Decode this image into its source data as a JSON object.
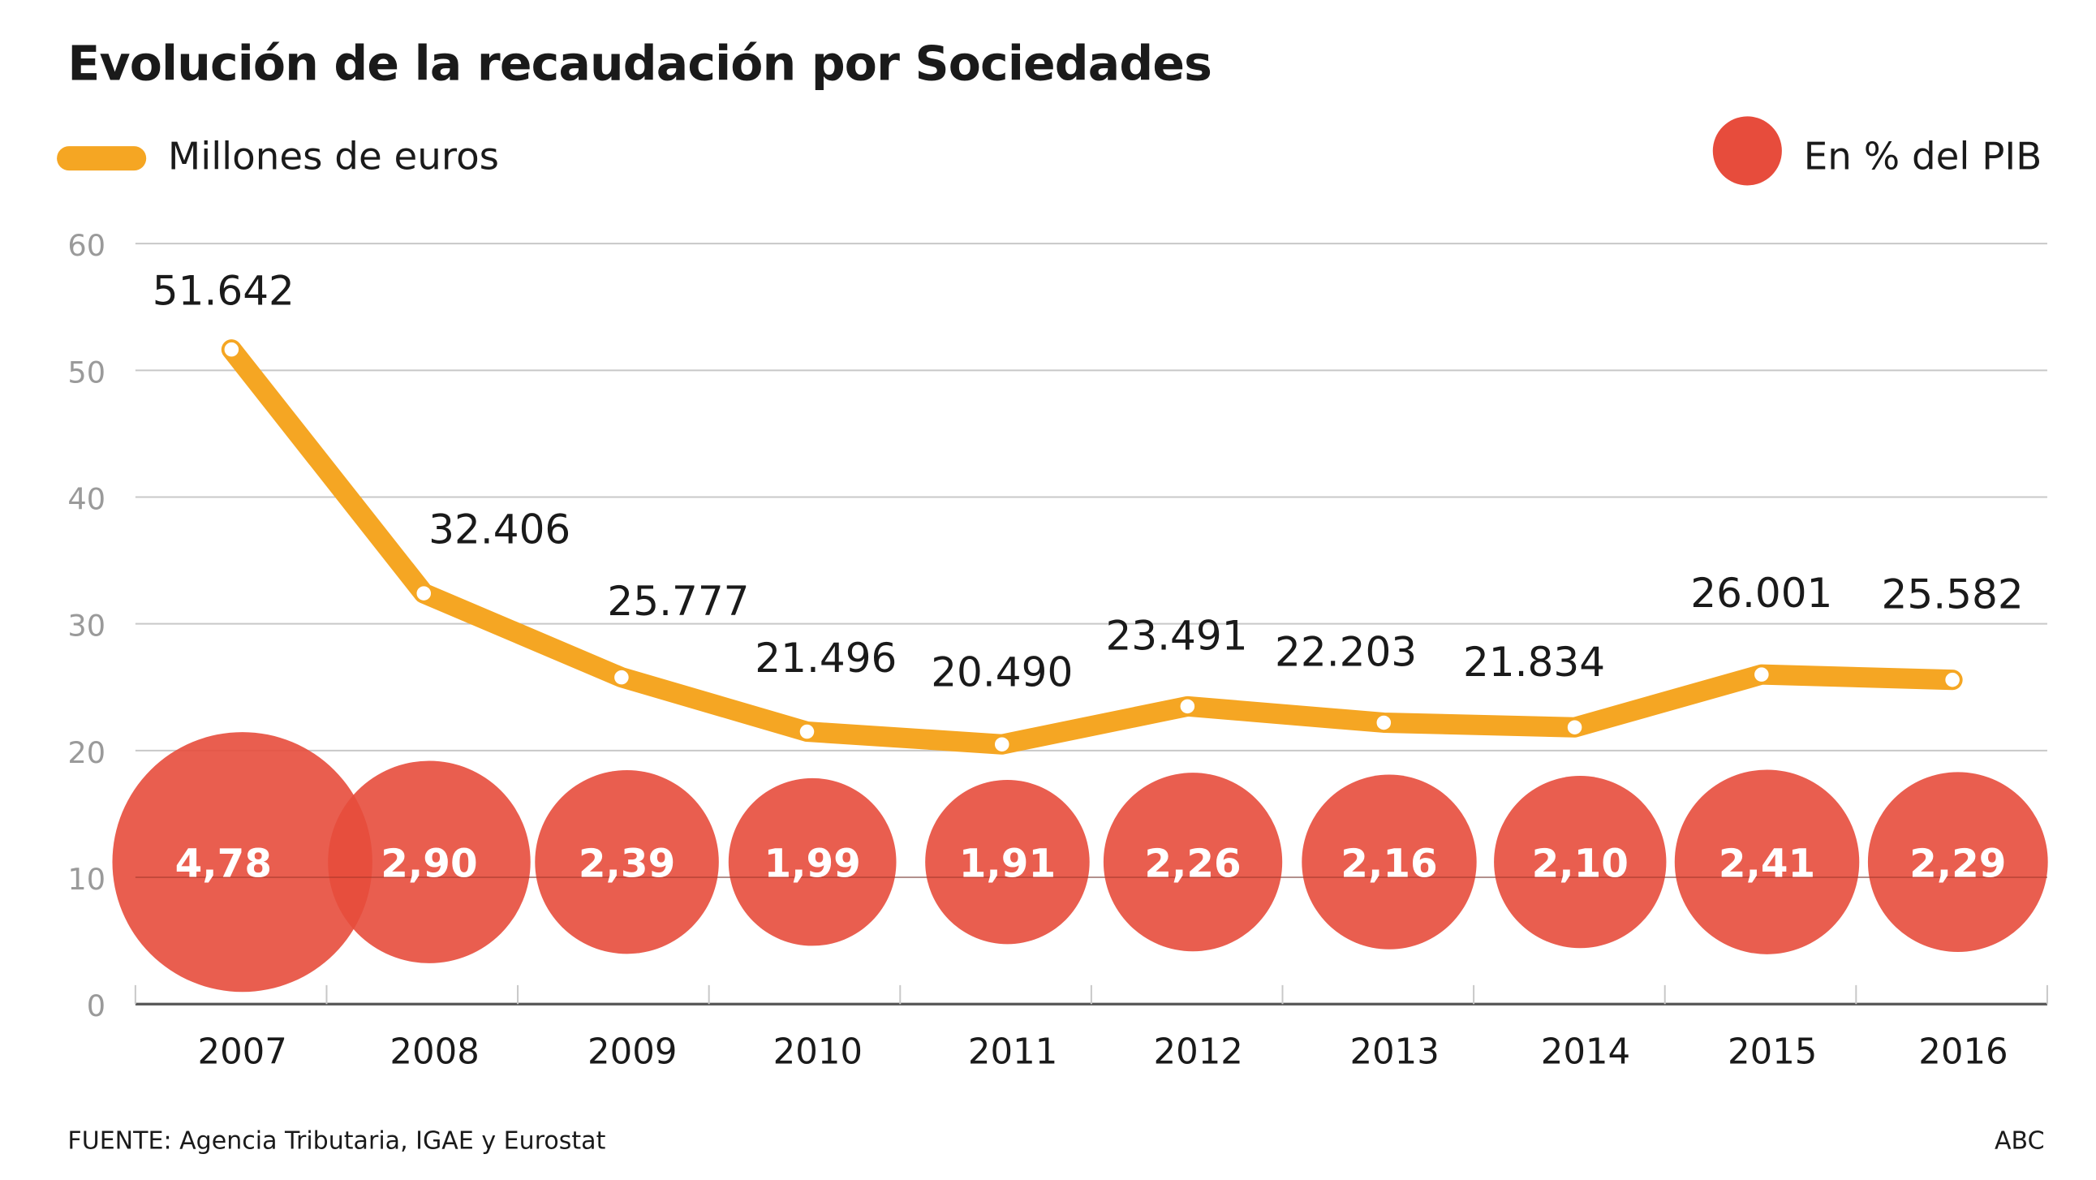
{
  "title": "Evolución de la recaudación por Sociedades",
  "legend": {
    "line_label": "Millones de euros",
    "bubble_label": "En % del PIB"
  },
  "source": "FUENTE: Agencia Tributaria, IGAE y Eurostat",
  "credit": "ABC",
  "colors": {
    "line": "#f5a623",
    "bubble": "#e74c3c",
    "grid": "#c8c8c8",
    "axis_text": "#9a9a9a",
    "text": "#1a1a1a"
  },
  "chart_data": {
    "type": "line",
    "categories": [
      "2007",
      "2008",
      "2009",
      "2010",
      "2011",
      "2012",
      "2013",
      "2014",
      "2015",
      "2016"
    ],
    "series": [
      {
        "name": "Millones de euros",
        "values": [
          51642,
          32406,
          25777,
          21496,
          20490,
          23491,
          22203,
          21834,
          26001,
          25582
        ],
        "labels": [
          "51.642",
          "32.406",
          "25.777",
          "21.496",
          "20.490",
          "23.491",
          "22.203",
          "21.834",
          "26.001",
          "25.582"
        ]
      },
      {
        "name": "En % del PIB",
        "type": "bubble",
        "values": [
          4.78,
          2.9,
          2.39,
          1.99,
          1.91,
          2.26,
          2.16,
          2.1,
          2.41,
          2.29
        ],
        "labels": [
          "4,78",
          "2,90",
          "2,39",
          "1,99",
          "1,91",
          "2,26",
          "2,16",
          "2,10",
          "2,41",
          "2,29"
        ]
      }
    ],
    "yticks": [
      "0",
      "10",
      "20",
      "30",
      "40",
      "50",
      "60"
    ],
    "ylim": [
      0,
      60
    ],
    "grid": true,
    "legend_position": "top"
  }
}
